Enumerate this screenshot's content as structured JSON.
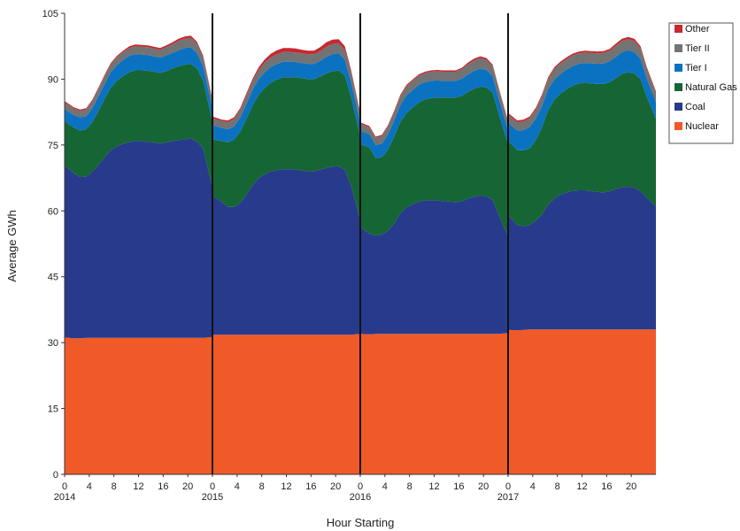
{
  "chart_data": {
    "type": "area",
    "stacked": true,
    "xlabel": "Hour Starting",
    "ylabel": "Average GWh",
    "ylim": [
      0,
      105
    ],
    "yticks": [
      0,
      15,
      30,
      45,
      60,
      75,
      90,
      105
    ],
    "hour_tick_labels": [
      "0",
      "4",
      "8",
      "12",
      "16",
      "20"
    ],
    "years": [
      "2014",
      "2015",
      "2016",
      "2017"
    ],
    "legend_position": "top-right",
    "legend_order": [
      "Other",
      "Tier II",
      "Tier I",
      "Natural Gas",
      "Coal",
      "Nuclear"
    ],
    "colors": {
      "Nuclear": "#f05a28",
      "Coal": "#283a8c",
      "Natural Gas": "#166534",
      "Tier I": "#0b72c1",
      "Tier II": "#737373",
      "Other": "#c8282e"
    },
    "panels": [
      {
        "year": "2014",
        "hours": [
          0,
          1,
          2,
          3,
          4,
          5,
          6,
          7,
          8,
          9,
          10,
          11,
          12,
          13,
          14,
          15,
          16,
          17,
          18,
          19,
          20,
          21,
          22,
          23
        ],
        "series": [
          {
            "name": "Nuclear",
            "values": [
              31.2,
              31.0,
              31.0,
              31.1,
              31.1,
              31.1,
              31.1,
              31.1,
              31.1,
              31.1,
              31.1,
              31.1,
              31.1,
              31.1,
              31.1,
              31.1,
              31.1,
              31.1,
              31.1,
              31.1,
              31.1,
              31.1,
              31.1,
              31.3
            ]
          },
          {
            "name": "Coal",
            "values": [
              39.2,
              37.6,
              36.7,
              36.7,
              37.8,
              39.4,
              41.1,
              42.7,
              43.6,
              44.2,
              44.6,
              44.8,
              44.8,
              44.6,
              44.5,
              44.2,
              44.5,
              44.8,
              45.0,
              45.2,
              45.4,
              44.7,
              43.0,
              34.0
            ]
          },
          {
            "name": "Natural Gas",
            "values": [
              10.0,
              10.4,
              10.6,
              10.8,
              11.3,
              12.3,
              13.3,
              14.3,
              14.9,
              15.4,
              15.9,
              16.1,
              16.1,
              16.2,
              16.1,
              16.1,
              16.2,
              16.5,
              16.8,
              17.0,
              17.0,
              16.6,
              15.5,
              15.0
            ]
          },
          {
            "name": "Tier I",
            "values": [
              2.8,
              2.8,
              3.0,
              3.0,
              3.2,
              3.3,
              3.4,
              3.5,
              3.6,
              3.7,
              3.7,
              3.7,
              3.6,
              3.6,
              3.5,
              3.5,
              3.6,
              3.6,
              3.7,
              3.8,
              3.8,
              3.6,
              3.3,
              3.0
            ]
          },
          {
            "name": "Tier II",
            "values": [
              1.5,
              1.5,
              1.5,
              1.5,
              1.6,
              1.7,
              1.8,
              1.8,
              1.8,
              1.8,
              1.8,
              1.8,
              1.8,
              1.8,
              1.8,
              1.8,
              1.9,
              2.0,
              2.1,
              2.1,
              2.1,
              2.1,
              2.0,
              1.8
            ]
          },
          {
            "name": "Other",
            "values": [
              0.3,
              0.3,
              0.3,
              0.3,
              0.3,
              0.3,
              0.3,
              0.3,
              0.3,
              0.3,
              0.4,
              0.4,
              0.4,
              0.4,
              0.4,
              0.4,
              0.4,
              0.4,
              0.5,
              0.5,
              0.5,
              0.4,
              0.4,
              0.3
            ]
          }
        ]
      },
      {
        "year": "2015",
        "hours": [
          0,
          1,
          2,
          3,
          4,
          5,
          6,
          7,
          8,
          9,
          10,
          11,
          12,
          13,
          14,
          15,
          16,
          17,
          18,
          19,
          20,
          21,
          22,
          23
        ],
        "series": [
          {
            "name": "Nuclear",
            "values": [
              31.8,
              31.8,
              31.8,
              31.8,
              31.8,
              31.8,
              31.8,
              31.8,
              31.8,
              31.8,
              31.8,
              31.8,
              31.8,
              31.8,
              31.8,
              31.8,
              31.8,
              31.8,
              31.8,
              31.8,
              31.8,
              31.8,
              31.8,
              32.0
            ]
          },
          {
            "name": "Coal",
            "values": [
              31.7,
              30.3,
              29.1,
              29.1,
              30.0,
              31.8,
              34.0,
              35.7,
              36.5,
              37.2,
              37.5,
              37.7,
              37.7,
              37.6,
              37.4,
              37.2,
              37.2,
              37.6,
              38.0,
              38.3,
              38.4,
              37.5,
              34.0,
              26.0
            ]
          },
          {
            "name": "Natural Gas",
            "values": [
              12.8,
              13.8,
              14.7,
              15.3,
              16.2,
              17.3,
              18.2,
              18.9,
              19.7,
              20.2,
              20.6,
              20.9,
              20.9,
              21.0,
              21.0,
              21.0,
              21.0,
              21.2,
              21.5,
              21.7,
              21.8,
              21.5,
              20.2,
              19.0
            ]
          },
          {
            "name": "Tier I",
            "values": [
              3.2,
              3.0,
              3.0,
              3.0,
              3.2,
              3.4,
              3.5,
              3.6,
              3.6,
              3.6,
              3.6,
              3.6,
              3.6,
              3.5,
              3.5,
              3.5,
              3.5,
              3.6,
              3.8,
              3.9,
              3.9,
              3.7,
              3.4,
              3.0
            ]
          },
          {
            "name": "Tier II",
            "values": [
              1.6,
              1.6,
              1.6,
              1.7,
              1.8,
              1.9,
              2.0,
              2.1,
              2.2,
              2.2,
              2.2,
              2.2,
              2.2,
              2.2,
              2.2,
              2.2,
              2.2,
              2.2,
              2.3,
              2.3,
              2.3,
              2.2,
              2.1,
              1.9
            ]
          },
          {
            "name": "Other",
            "values": [
              0.4,
              0.3,
              0.4,
              0.4,
              0.4,
              0.5,
              0.5,
              0.6,
              0.7,
              0.8,
              0.9,
              0.9,
              0.9,
              0.9,
              0.8,
              0.8,
              0.8,
              0.9,
              1.0,
              1.0,
              0.9,
              0.8,
              0.6,
              0.4
            ]
          }
        ]
      },
      {
        "year": "2016",
        "hours": [
          0,
          1,
          2,
          3,
          4,
          5,
          6,
          7,
          8,
          9,
          10,
          11,
          12,
          13,
          14,
          15,
          16,
          17,
          18,
          19,
          20,
          21,
          22,
          23
        ],
        "series": [
          {
            "name": "Nuclear",
            "values": [
              32.0,
              31.9,
              32.0,
              32.0,
              32.0,
              32.0,
              32.0,
              32.0,
              32.0,
              32.0,
              32.0,
              32.0,
              32.0,
              32.0,
              32.0,
              32.0,
              32.0,
              32.0,
              32.0,
              32.0,
              32.0,
              32.0,
              32.0,
              32.2
            ]
          },
          {
            "name": "Coal",
            "values": [
              24.3,
              22.9,
              22.4,
              22.6,
              23.5,
              25.1,
              27.4,
              28.8,
              29.5,
              30.1,
              30.4,
              30.4,
              30.4,
              30.2,
              30.1,
              30.0,
              30.2,
              30.8,
              31.2,
              31.5,
              31.3,
              30.5,
              27.0,
              22.0
            ]
          },
          {
            "name": "Natural Gas",
            "values": [
              18.9,
              19.6,
              17.6,
              17.6,
              18.4,
              19.8,
              20.8,
              21.5,
              22.0,
              22.6,
              23.0,
              23.3,
              23.4,
              23.6,
              23.7,
              23.8,
              24.0,
              24.3,
              24.6,
              24.8,
              24.8,
              24.4,
              23.0,
              21.0
            ]
          },
          {
            "name": "Tier I",
            "values": [
              3.1,
              3.0,
              3.0,
              3.1,
              3.5,
              3.7,
              3.9,
              4.0,
              4.0,
              4.0,
              3.9,
              3.9,
              3.9,
              3.8,
              3.8,
              3.8,
              3.9,
              4.0,
              4.1,
              4.1,
              4.0,
              3.8,
              3.5,
              3.1
            ]
          },
          {
            "name": "Tier II",
            "values": [
              1.6,
              1.6,
              1.6,
              1.7,
              1.8,
              1.9,
              2.0,
              2.1,
              2.1,
              2.1,
              2.1,
              2.1,
              2.1,
              2.1,
              2.1,
              2.1,
              2.2,
              2.3,
              2.4,
              2.4,
              2.3,
              2.2,
              2.1,
              1.9
            ]
          },
          {
            "name": "Other",
            "values": [
              0.3,
              0.3,
              0.3,
              0.3,
              0.3,
              0.3,
              0.3,
              0.3,
              0.3,
              0.3,
              0.3,
              0.3,
              0.3,
              0.3,
              0.3,
              0.3,
              0.3,
              0.4,
              0.4,
              0.4,
              0.4,
              0.4,
              0.3,
              0.3
            ]
          }
        ]
      },
      {
        "year": "2017",
        "hours": [
          0,
          1,
          2,
          3,
          4,
          5,
          6,
          7,
          8,
          9,
          10,
          11,
          12,
          13,
          14,
          15,
          16,
          17,
          18,
          19,
          20,
          21,
          22,
          23
        ],
        "series": [
          {
            "name": "Nuclear",
            "values": [
              32.9,
              32.8,
              32.9,
              33.0,
              33.0,
              33.0,
              33.0,
              33.0,
              33.0,
              33.0,
              33.0,
              33.0,
              33.0,
              33.0,
              33.0,
              33.0,
              33.0,
              33.0,
              33.0,
              33.0,
              33.0,
              33.0,
              33.0,
              33.0
            ]
          },
          {
            "name": "Coal",
            "values": [
              26.1,
              24.0,
              23.6,
              23.8,
              24.8,
              26.2,
              28.4,
              29.8,
              30.7,
              31.2,
              31.6,
              31.7,
              31.7,
              31.5,
              31.3,
              31.2,
              31.5,
              32.0,
              32.4,
              32.5,
              32.3,
              31.5,
              30.0,
              28.0
            ]
          },
          {
            "name": "Natural Gas",
            "values": [
              17.0,
              17.0,
              17.3,
              17.4,
              18.3,
              19.8,
              21.5,
              22.5,
              23.0,
              23.5,
              23.9,
              24.3,
              24.5,
              24.5,
              24.6,
              24.7,
              24.8,
              25.2,
              25.8,
              26.1,
              26.0,
              25.5,
              23.0,
              20.0
            ]
          },
          {
            "name": "Tier I",
            "values": [
              4.1,
              4.5,
              4.6,
              4.9,
              4.9,
              4.9,
              4.8,
              4.6,
              4.5,
              4.5,
              4.5,
              4.5,
              4.5,
              4.6,
              4.6,
              4.7,
              4.8,
              4.9,
              5.0,
              5.0,
              4.9,
              4.6,
              4.2,
              3.8
            ]
          },
          {
            "name": "Tier II",
            "values": [
              1.8,
              1.9,
              2.0,
              2.0,
              2.1,
              2.2,
              2.3,
              2.4,
              2.4,
              2.4,
              2.4,
              2.4,
              2.4,
              2.4,
              2.4,
              2.4,
              2.4,
              2.5,
              2.5,
              2.5,
              2.5,
              2.4,
              2.2,
              2.0
            ]
          },
          {
            "name": "Other",
            "values": [
              0.4,
              0.4,
              0.4,
              0.4,
              0.4,
              0.4,
              0.4,
              0.4,
              0.4,
              0.4,
              0.4,
              0.4,
              0.4,
              0.4,
              0.4,
              0.4,
              0.4,
              0.5,
              0.5,
              0.5,
              0.5,
              0.5,
              0.4,
              0.4
            ]
          }
        ]
      }
    ]
  }
}
